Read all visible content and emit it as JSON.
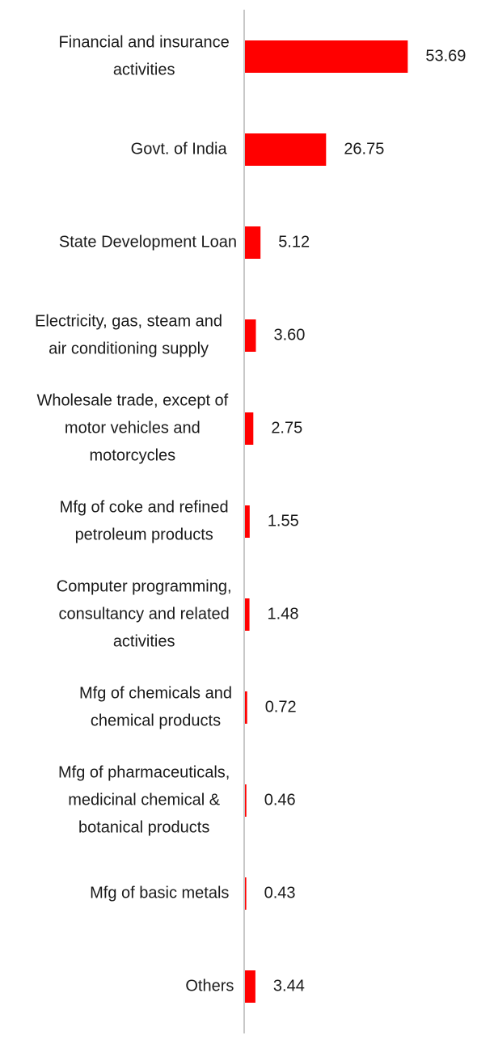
{
  "colors": {
    "bar": "#ff0000",
    "axis": "#c8c8c8",
    "text": "#1a1a1a",
    "background": "#ffffff"
  },
  "chart_data": {
    "type": "bar",
    "orientation": "horizontal",
    "categories": [
      [
        "Financial and insurance",
        "activities"
      ],
      [
        "Govt. of India"
      ],
      [
        "State Development Loan"
      ],
      [
        "Electricity, gas, steam and",
        "air conditioning supply"
      ],
      [
        "Wholesale trade, except of",
        "motor vehicles and",
        "motorcycles"
      ],
      [
        "Mfg of coke and refined",
        "petroleum products"
      ],
      [
        "Computer programming,",
        "consultancy and related",
        "activities"
      ],
      [
        "Mfg of chemicals and",
        "chemical products"
      ],
      [
        "Mfg of pharmaceuticals,",
        "medicinal chemical &",
        "botanical products"
      ],
      [
        "Mfg of basic metals"
      ],
      [
        "Others"
      ]
    ],
    "values": [
      53.69,
      26.75,
      5.12,
      3.6,
      2.75,
      1.55,
      1.48,
      0.72,
      0.46,
      0.43,
      3.44
    ],
    "value_labels": [
      "53.69",
      "26.75",
      "5.12",
      "3.60",
      "2.75",
      "1.55",
      "1.48",
      "0.72",
      "0.46",
      "0.43",
      "3.44"
    ],
    "grid": false,
    "legend": "none"
  }
}
